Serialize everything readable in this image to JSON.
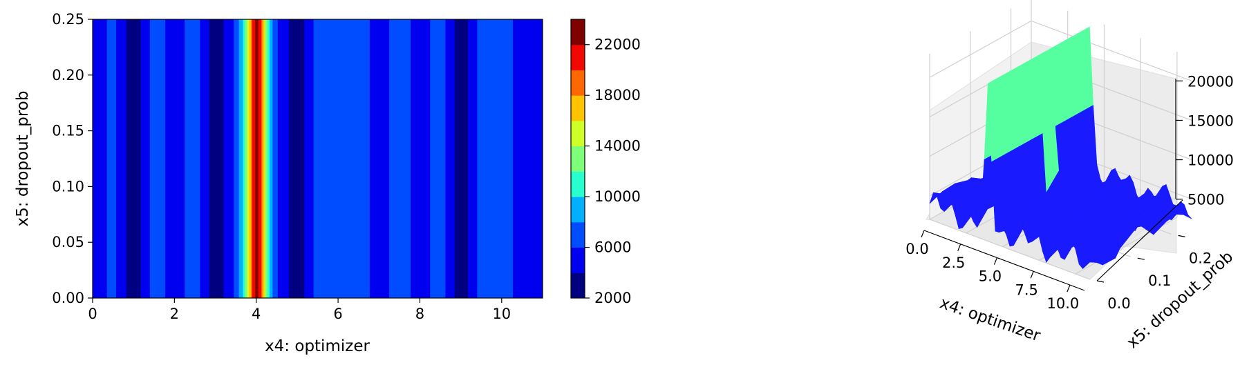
{
  "chart_data": [
    {
      "type": "heatmap",
      "subtype": "filled-contour",
      "colormap": "jet",
      "xlabel": "x4: optimizer",
      "ylabel": "x5: dropout_prob",
      "xlim": [
        0,
        11
      ],
      "ylim": [
        0,
        0.25
      ],
      "x_ticks": [
        "0",
        "2",
        "4",
        "6",
        "8",
        "10"
      ],
      "y_ticks": [
        "0.00",
        "0.05",
        "0.10",
        "0.15",
        "0.20",
        "0.25"
      ],
      "colorbar": {
        "range": [
          2000,
          24000
        ],
        "ticks": [
          "2000",
          "6000",
          "10000",
          "14000",
          "18000",
          "22000"
        ],
        "levels": [
          2000,
          4000,
          6000,
          8000,
          10000,
          12000,
          14000,
          16000,
          18000,
          20000,
          22000,
          24000
        ],
        "level_colors": [
          "#000080",
          "#0000f1",
          "#004cff",
          "#00b0ff",
          "#29ffce",
          "#7dff7a",
          "#ceff29",
          "#ffc400",
          "#ff6800",
          "#f10800",
          "#800000"
        ]
      },
      "x": [
        0,
        0.5,
        1,
        1.5,
        2,
        2.5,
        3,
        3.5,
        3.7,
        3.8,
        3.9,
        4.0,
        4.1,
        4.2,
        4.3,
        4.5,
        5,
        5.5,
        6,
        6.5,
        7,
        7.5,
        8,
        8.5,
        9,
        9.5,
        10,
        10.5,
        11
      ],
      "z": [
        5000,
        6500,
        2500,
        7000,
        5000,
        7000,
        2500,
        6500,
        11000,
        15000,
        20000,
        23000,
        20000,
        15000,
        10000,
        6000,
        2500,
        7000,
        7000,
        7000,
        5000,
        7000,
        5000,
        7000,
        2500,
        7000,
        7000,
        5000,
        5000
      ],
      "grid": false
    },
    {
      "type": "surface3d",
      "xlabel": "x4: optimizer",
      "ylabel": "x5: dropout_prob",
      "x_ticks": [
        "0.0",
        "2.5",
        "5.0",
        "7.5",
        "10.0"
      ],
      "y_ticks": [
        "0.0",
        "0.1",
        "0.2"
      ],
      "z_ticks": [
        "5000",
        "10000",
        "15000",
        "20000"
      ],
      "peak": {
        "x": 4,
        "z": 22000
      },
      "baseline_z": 4000,
      "surface_colors": {
        "peak": "#55ffa0",
        "base": "#1a1aff"
      },
      "grid": true
    }
  ]
}
